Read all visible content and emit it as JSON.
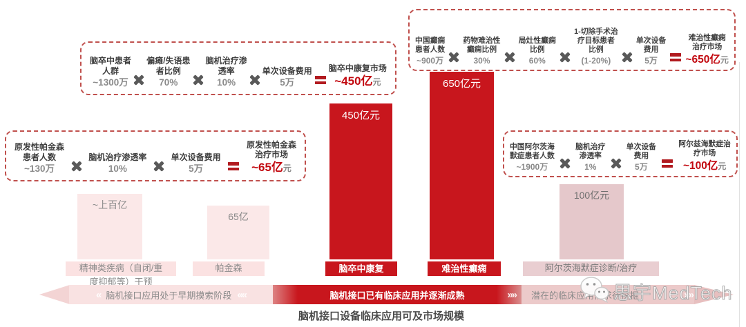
{
  "title": "脑机接口设备临床应用可及市场规模",
  "watermark": {
    "brand": "思宇MedTech",
    "icon": "wechat-icon"
  },
  "colors": {
    "accent_red": "#c8161d",
    "result_red": "#c2080f",
    "equals_red": "#b11a1f",
    "dashed_border_red": "#c0504d",
    "light_pink": "#fbe8e8",
    "plate_pink": "#fbe2e2",
    "dusty_pink": "#e5c8cb",
    "dusty_plate_pink": "#e9ced1"
  },
  "formulas": {
    "stroke": {
      "factors": [
        {
          "label": "脑卒中患者\n人群",
          "value": "~1300万"
        },
        {
          "label": "偏瘫/失语患\n者比例",
          "value": "70%"
        },
        {
          "label": "脑机治疗渗\n透率",
          "value": "10%"
        },
        {
          "label": "单次设备费用",
          "value": "5万"
        }
      ],
      "result": {
        "label": "脑卒中康复市场",
        "amount": "~450亿",
        "unit": "元"
      }
    },
    "epilepsy": {
      "factors": [
        {
          "label": "中国癫痫\n患者人数",
          "value": "~900万"
        },
        {
          "label": "药物难治性\n癫痫比例",
          "value": "30%"
        },
        {
          "label": "局灶性癫痫\n比例",
          "value": "60%"
        },
        {
          "label": "1-切除手术治\n疗目标患者\n比例",
          "value": "(1-20%)"
        },
        {
          "label": "单次设备\n费用",
          "value": "5万"
        }
      ],
      "result": {
        "label": "难治性癫痫\n治疗市场",
        "amount": "~650亿",
        "unit": "元"
      }
    },
    "parkinson": {
      "factors": [
        {
          "label": "原发性帕金森\n患者人数",
          "value": "~130万"
        },
        {
          "label": "脑机治疗渗透率",
          "value": "10%"
        },
        {
          "label": "单次设备费用",
          "value": "5万"
        }
      ],
      "result": {
        "label": "原发性帕金森\n治疗市场",
        "amount": "~65亿",
        "unit": "元"
      }
    },
    "alzheimer": {
      "factors": [
        {
          "label": "中国阿尔茨海\n默症患者人数",
          "value": "~1900万"
        },
        {
          "label": "脑机治疗\n渗透率",
          "value": "1%"
        },
        {
          "label": "单次设备\n费用",
          "value": "5万"
        }
      ],
      "result": {
        "label": "阿尔兹海默症治\n疗市场",
        "amount": "~100亿",
        "unit": "元"
      }
    }
  },
  "chart_data": {
    "type": "bar",
    "title": "脑机接口设备临床应用可及市场规模",
    "unit": "亿元",
    "categories": [
      "精神类疾病（自闭/重\n度抑郁等）干预",
      "帕金森",
      "脑卒中康复",
      "难治性癫痫",
      "阿尔茨海默症诊断/治疗"
    ],
    "values": [
      100,
      65,
      450,
      650,
      100
    ],
    "value_labels": [
      "~上百亿",
      "65亿",
      "450亿元",
      "650亿元",
      "100亿元"
    ],
    "highlight": [
      false,
      false,
      true,
      true,
      false
    ],
    "ylim": [
      0,
      700
    ],
    "grid": false,
    "legend": "none"
  },
  "timeline": {
    "segments": [
      "脑机接口应用处于早期摸索阶段",
      "脑机接口已有临床应用并逐渐成熟",
      "潜在的临床应用需求待挖掘"
    ]
  }
}
